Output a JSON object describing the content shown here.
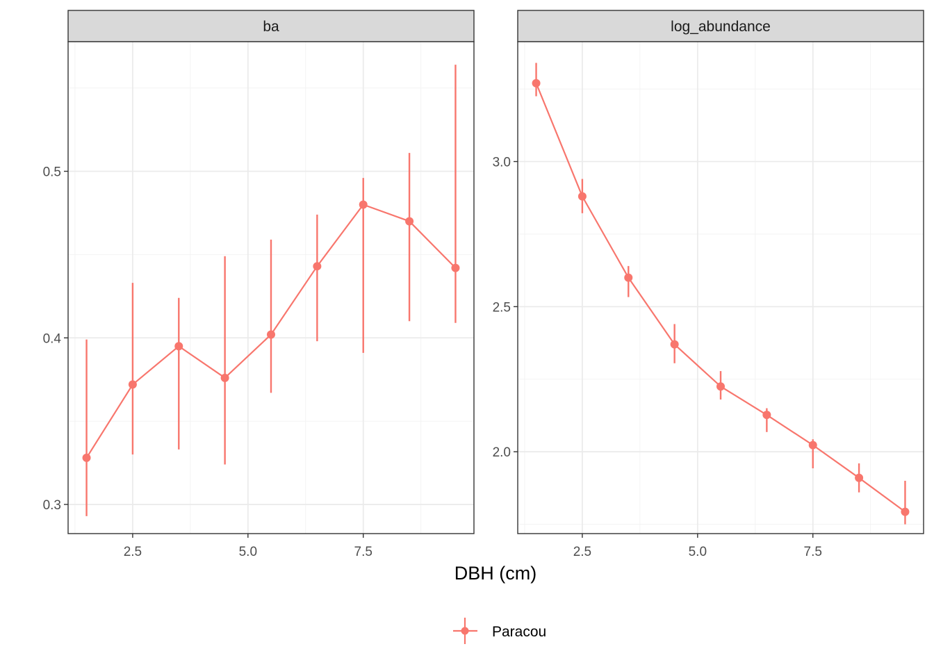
{
  "chart_data": {
    "type": "line",
    "facet_layout": "1x2",
    "xlabel": "DBH (cm)",
    "legend": {
      "position": "bottom",
      "entries": [
        {
          "name": "Paracou",
          "color": "#f8766d"
        }
      ]
    },
    "panels": [
      {
        "strip": "ba",
        "xlim": [
          1.1,
          9.9
        ],
        "x_ticks": [
          2.5,
          5.0,
          7.5
        ],
        "x_tick_labels": [
          "2.5",
          "5.0",
          "7.5"
        ],
        "ylim": [
          0.2825,
          0.5778
        ],
        "y_ticks": [
          0.3,
          0.4,
          0.5
        ],
        "y_tick_labels": [
          "0.3",
          "0.4",
          "0.5"
        ],
        "series": [
          {
            "name": "Paracou",
            "color": "#f8766d",
            "x": [
              1.5,
              2.5,
              3.5,
              4.5,
              5.5,
              6.5,
              7.5,
              8.5,
              9.5
            ],
            "y": [
              0.328,
              0.372,
              0.395,
              0.376,
              0.402,
              0.443,
              0.48,
              0.47,
              0.442
            ],
            "ymin": [
              0.293,
              0.33,
              0.333,
              0.324,
              0.367,
              0.398,
              0.391,
              0.41,
              0.409
            ],
            "ymax": [
              0.399,
              0.433,
              0.424,
              0.449,
              0.459,
              0.474,
              0.496,
              0.511,
              0.564
            ]
          }
        ]
      },
      {
        "strip": "log_abundance",
        "xlim": [
          1.1,
          9.9
        ],
        "x_ticks": [
          2.5,
          5.0,
          7.5
        ],
        "x_tick_labels": [
          "2.5",
          "5.0",
          "7.5"
        ],
        "ylim": [
          1.718,
          3.413
        ],
        "y_ticks": [
          2.0,
          2.5,
          3.0
        ],
        "y_tick_labels": [
          "2.0",
          "2.5",
          "3.0"
        ],
        "series": [
          {
            "name": "Paracou",
            "color": "#f8766d",
            "x": [
              1.5,
              2.5,
              3.5,
              4.5,
              5.5,
              6.5,
              7.5,
              8.5,
              9.5
            ],
            "y": [
              3.27,
              2.88,
              2.6,
              2.37,
              2.225,
              2.127,
              2.023,
              1.91,
              1.793
            ],
            "ymin": [
              3.225,
              2.822,
              2.533,
              2.305,
              2.18,
              2.068,
              1.943,
              1.86,
              1.75
            ],
            "ymax": [
              3.34,
              2.94,
              2.64,
              2.44,
              2.278,
              2.15,
              2.043,
              1.96,
              1.9
            ]
          }
        ]
      }
    ],
    "grid": true
  }
}
